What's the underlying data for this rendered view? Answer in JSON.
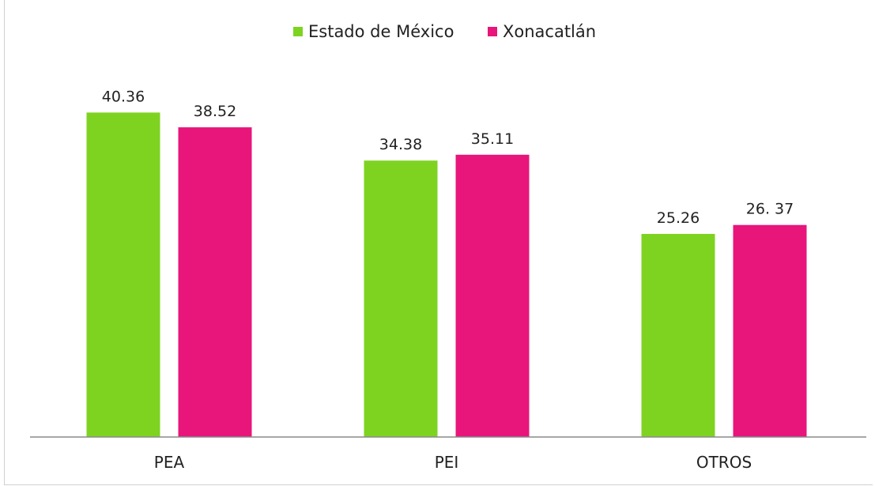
{
  "chart_data": {
    "type": "bar",
    "categories": [
      "PEA",
      "PEI",
      "OTROS"
    ],
    "series": [
      {
        "name": "Estado de México",
        "color": "#7ed321",
        "values": [
          40.36,
          34.38,
          25.26
        ],
        "labels": [
          "40.36",
          "34.38",
          "25.26"
        ]
      },
      {
        "name": "Xonacatlán",
        "color": "#e8157a",
        "values": [
          38.52,
          35.11,
          26.37
        ],
        "labels": [
          "38.52",
          "35.11",
          "26. 37"
        ]
      }
    ],
    "ylim": [
      0,
      46
    ],
    "legend_position": "top-center",
    "grid": false
  }
}
